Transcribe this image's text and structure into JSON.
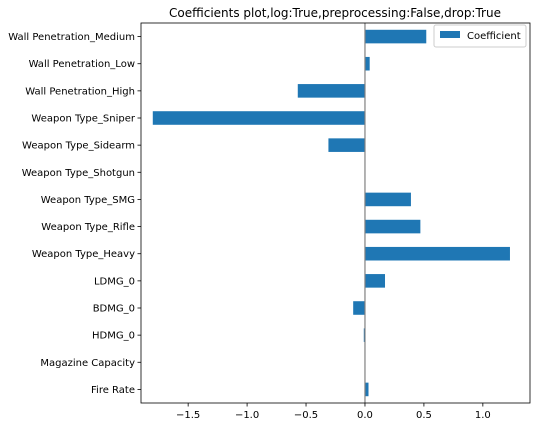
{
  "chart_data": {
    "type": "bar",
    "orientation": "horizontal",
    "title": "Coefficients plot,log:True,preprocessing:False,drop:True",
    "xlabel": "",
    "ylabel": "",
    "xlim": [
      -1.9,
      1.4
    ],
    "x_ticks": [
      -1.5,
      -1.0,
      -0.5,
      0.0,
      0.5,
      1.0
    ],
    "x_tick_labels": [
      "−1.5",
      "−1.0",
      "−0.5",
      "0.0",
      "0.5",
      "1.0"
    ],
    "grid": false,
    "legend_position": "top-right",
    "categories": [
      "Wall Penetration_Medium",
      "Wall Penetration_Low",
      "Wall Penetration_High",
      "Weapon Type_Sniper",
      "Weapon Type_Sidearm",
      "Weapon Type_Shotgun",
      "Weapon Type_SMG",
      "Weapon Type_Rifle",
      "Weapon Type_Heavy",
      "LDMG_0",
      "BDMG_0",
      "HDMG_0",
      "Magazine Capacity",
      "Fire Rate"
    ],
    "series": [
      {
        "name": "Coefficient",
        "color": "#1f77b4",
        "values": [
          0.52,
          0.04,
          -0.57,
          -1.8,
          -0.31,
          0.0,
          0.39,
          0.47,
          1.23,
          0.17,
          -0.1,
          -0.01,
          0.0,
          0.03
        ]
      }
    ],
    "zero_line_color": "#808080"
  }
}
